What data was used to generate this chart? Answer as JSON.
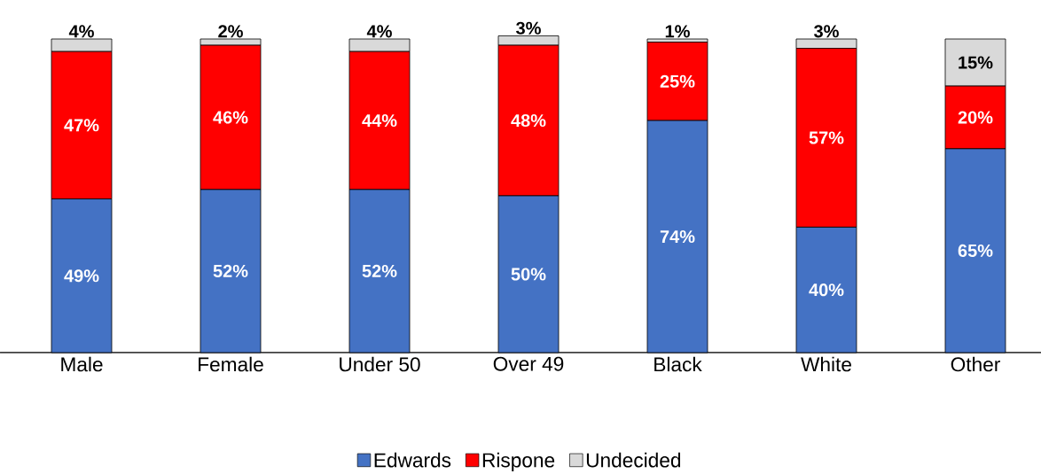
{
  "chart_data": {
    "type": "bar",
    "stacked": true,
    "legend": "bottom",
    "categories": [
      "Male",
      "Female",
      "Under 50",
      "Over 49",
      "Black",
      "White",
      "Other"
    ],
    "series": [
      {
        "name": "Edwards",
        "color": "#4472c4",
        "values": [
          49,
          52,
          52,
          50,
          74,
          40,
          65
        ],
        "value_labels": [
          "49%",
          "52%",
          "52%",
          "50%",
          "74%",
          "40%",
          "65%"
        ]
      },
      {
        "name": "Rispone",
        "color": "#ff0000",
        "values": [
          47,
          46,
          44,
          48,
          25,
          57,
          20
        ],
        "value_labels": [
          "47%",
          "46%",
          "44%",
          "48%",
          "25%",
          "57%",
          "20%"
        ]
      },
      {
        "name": "Undecided",
        "color": "#d9d9d9",
        "values": [
          4,
          2,
          4,
          3,
          1,
          3,
          15
        ],
        "value_labels": [
          "4%",
          "2%",
          "4%",
          "3%",
          "1%",
          "3%",
          "15%"
        ]
      }
    ]
  }
}
